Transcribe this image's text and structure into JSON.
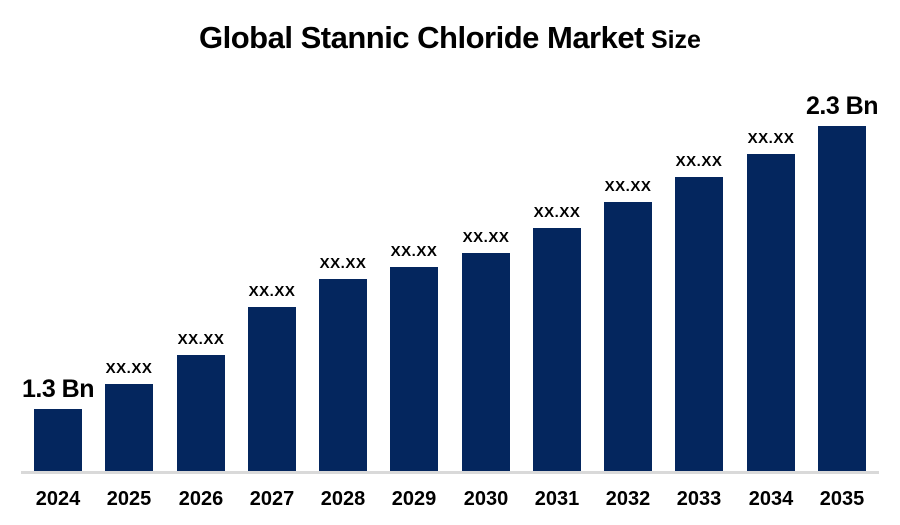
{
  "header": {
    "title_main": "Global Stannic Chloride Market",
    "title_suffix": "Size"
  },
  "chart_data": {
    "type": "bar",
    "title": "Global Stannic Chloride Market Size",
    "categories": [
      "2024",
      "2025",
      "2026",
      "2027",
      "2028",
      "2029",
      "2030",
      "2031",
      "2032",
      "2033",
      "2034",
      "2035"
    ],
    "values_usd_bn_estimated": [
      1.3,
      1.39,
      1.49,
      1.66,
      1.76,
      1.8,
      1.85,
      1.94,
      2.03,
      2.12,
      2.2,
      2.3
    ],
    "data_labels": [
      "1.3 Bn",
      "XX.XX",
      "XX.XX",
      "XX.XX",
      "XX.XX",
      "XX.XX",
      "XX.XX",
      "XX.XX",
      "XX.XX",
      "XX.XX",
      "XX.XX",
      "2.3 Bn"
    ],
    "value_axis_range_bn": [
      1.08,
      2.3
    ],
    "bar_color": "#04265e",
    "axis_line_color": "#d9d9d9",
    "text_color": "#000000",
    "background_color": "#ffffff",
    "xlabel": "",
    "ylabel": "",
    "legend": false,
    "gridlines": false,
    "y_axis_visible": false
  }
}
